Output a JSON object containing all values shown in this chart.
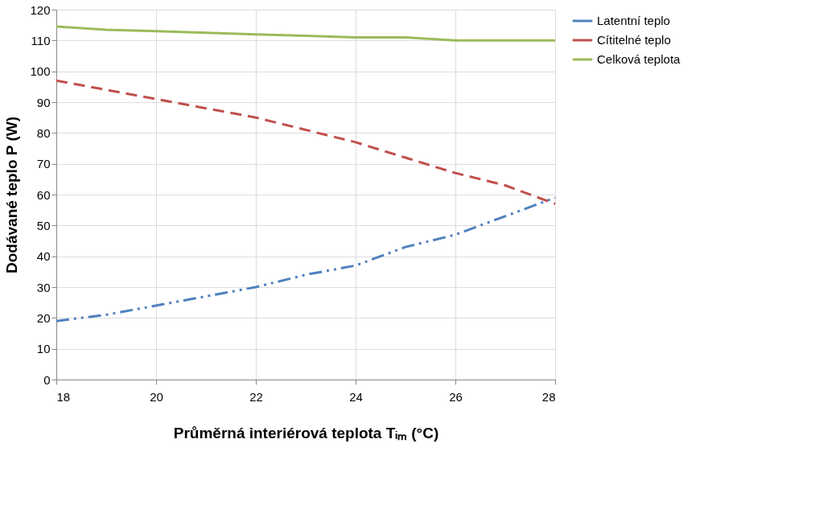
{
  "chart_data": {
    "type": "line",
    "xlabel": "Průměrná interiérová teplota Tᵢₘ (°C)",
    "ylabel": "Dodávané teplo P (W)",
    "x": [
      18,
      19,
      20,
      21,
      22,
      23,
      24,
      25,
      26,
      27,
      28
    ],
    "series": [
      {
        "name": "Latentní teplo",
        "color": "#4f81bd",
        "line_style": "dotted",
        "values": [
          19,
          21,
          24,
          27,
          30,
          34,
          37,
          43,
          47,
          53,
          59
        ]
      },
      {
        "name": "Cítitelné teplo",
        "color": "#c0504d",
        "line_style": "dashed",
        "values": [
          97,
          94,
          91,
          88,
          85,
          81,
          77,
          72,
          67,
          63,
          57
        ]
      },
      {
        "name": "Celková teplota",
        "color": "#9bbb59",
        "line_style": "solid",
        "values": [
          114.5,
          113.5,
          113,
          112.5,
          112,
          111.5,
          111,
          111,
          110,
          110,
          110
        ]
      }
    ],
    "xlim": [
      18,
      28
    ],
    "xticks": [
      18,
      20,
      22,
      24,
      26,
      28
    ],
    "ylim": [
      0,
      120
    ],
    "yticks": [
      0,
      10,
      20,
      30,
      40,
      50,
      60,
      70,
      80,
      90,
      100,
      110,
      120
    ],
    "grid": true,
    "legend": "right",
    "marker": "none"
  }
}
